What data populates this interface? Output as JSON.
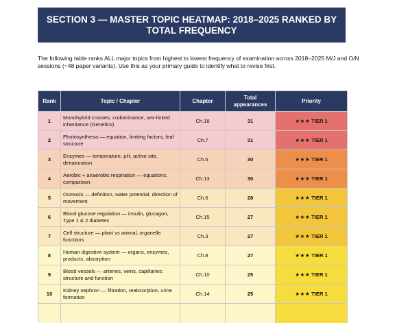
{
  "section": {
    "title": "SECTION 3 — MASTER TOPIC HEATMAP: 2018–2025 RANKED BY TOTAL FREQUENCY",
    "intro": "The following table ranks ALL major topics from highest to lowest frequency of examination across 2018–2025 M/J and O/N sessions (~48 paper variants). Use this as your primary guide to identify what to revise first."
  },
  "table": {
    "headers": {
      "rank": "Rank",
      "topic": "Topic / Chapter",
      "chapter": "Chapter",
      "total": "Total appearances",
      "priority": "Priority"
    },
    "rows": [
      {
        "rank": "1",
        "topic": "Monohybrid crosses, codominance, sex-linked inheritance (Genetics)",
        "chapter": "Ch.18",
        "total": "31",
        "stars": "★★★",
        "priority": "TIER 1",
        "row_bg": "#f3cbd0",
        "prio_bg": "#e4716d"
      },
      {
        "rank": "2",
        "topic": "Photosynthesis — equation, limiting factors, leaf structure",
        "chapter": "Ch.7",
        "total": "31",
        "stars": "★★★",
        "priority": "TIER 1",
        "row_bg": "#f3cbd0",
        "prio_bg": "#e4716d"
      },
      {
        "rank": "3",
        "topic": "Enzymes — temperature, pH, active site, denaturation",
        "chapter": "Ch.5",
        "total": "30",
        "stars": "★★★",
        "priority": "TIER 1",
        "row_bg": "#f6d3b8",
        "prio_bg": "#ec8f4a"
      },
      {
        "rank": "4",
        "topic": "Aerobic + anaerobic respiration — equations, comparison",
        "chapter": "Ch.13",
        "total": "30",
        "stars": "★★★",
        "priority": "TIER 1",
        "row_bg": "#f6d3b8",
        "prio_bg": "#ec8f4a"
      },
      {
        "rank": "5",
        "topic": "Osmosis — definition, water potential, direction of movement",
        "chapter": "Ch.6",
        "total": "28",
        "stars": "★★★",
        "priority": "TIER 1",
        "row_bg": "#fbe7bf",
        "prio_bg": "#f2c53a"
      },
      {
        "rank": "6",
        "topic": "Blood glucose regulation — insulin, glucagon, Type 1 & 2 diabetes",
        "chapter": "Ch.15",
        "total": "27",
        "stars": "★★★",
        "priority": "TIER 1",
        "row_bg": "#fbe7bf",
        "prio_bg": "#f2c53a"
      },
      {
        "rank": "7",
        "topic": "Cell structure — plant vs animal, organelle functions",
        "chapter": "Ch.3",
        "total": "27",
        "stars": "★★★",
        "priority": "TIER 1",
        "row_bg": "#fbe7bf",
        "prio_bg": "#f2c53a"
      },
      {
        "rank": "8",
        "topic": "Human digestive system — organs, enzymes, products, absorption",
        "chapter": "Ch.8",
        "total": "27",
        "stars": "★★★",
        "priority": "TIER 1",
        "row_bg": "#fdf6c8",
        "prio_bg": "#f6dc3c"
      },
      {
        "rank": "9",
        "topic": "Blood vessels — arteries, veins, capillaries: structure and function",
        "chapter": "Ch.10",
        "total": "25",
        "stars": "★★★",
        "priority": "TIER 1",
        "row_bg": "#fdf6c8",
        "prio_bg": "#f6dc3c"
      },
      {
        "rank": "10",
        "topic": "Kidney nephron — filtration, reabsorption, urine formation",
        "chapter": "Ch.14",
        "total": "25",
        "stars": "★★★",
        "priority": "TIER 1",
        "row_bg": "#fdf6c8",
        "prio_bg": "#f6dc3c"
      }
    ]
  }
}
